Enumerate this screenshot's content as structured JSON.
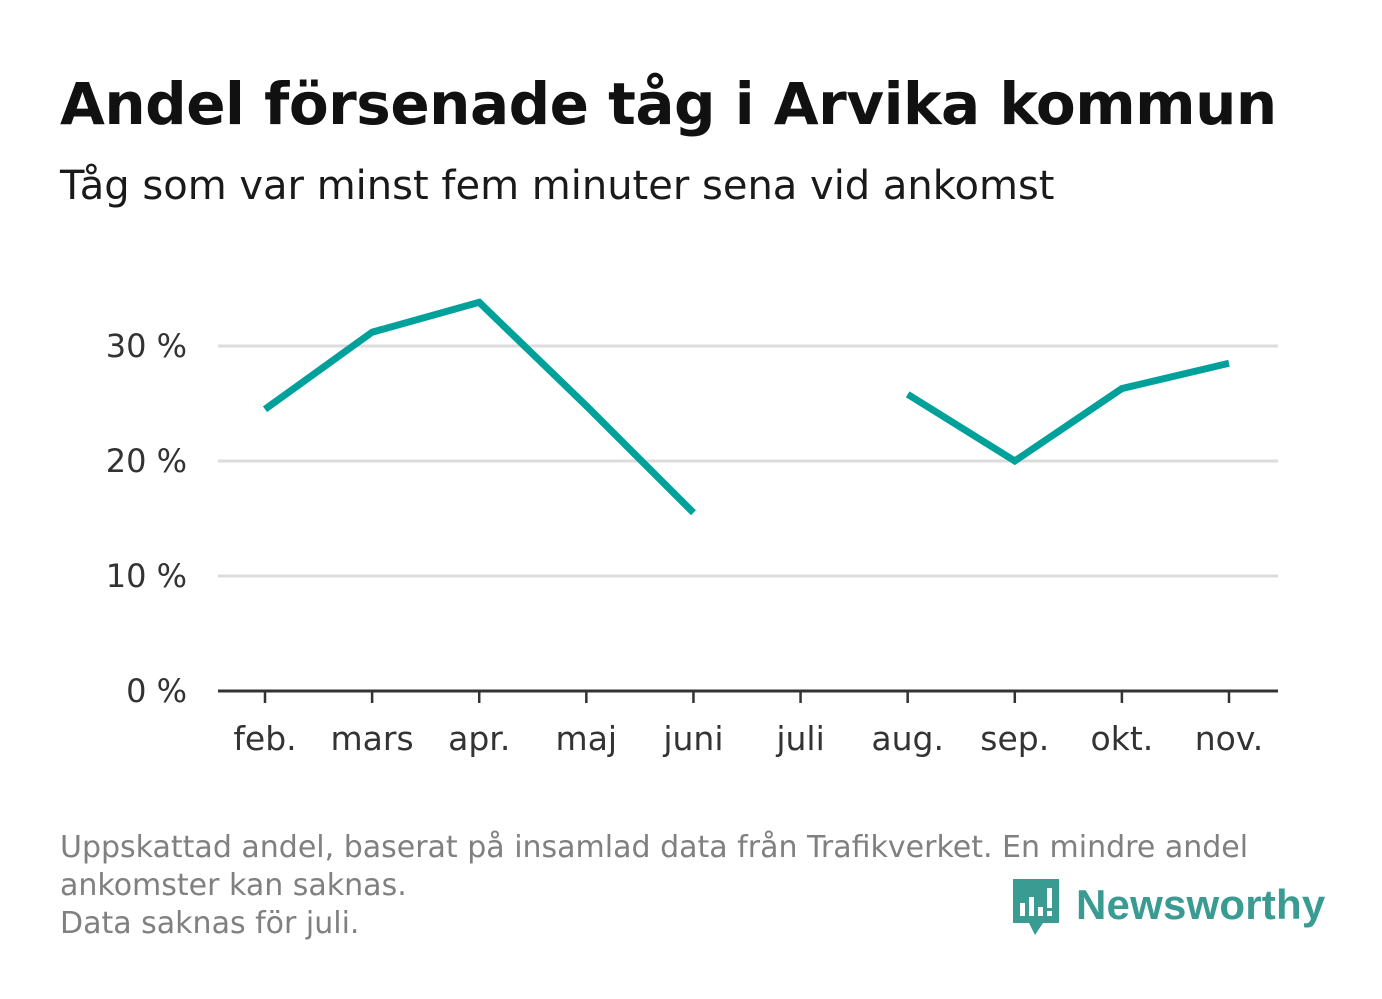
{
  "header": {
    "title": "Andel försenade tåg i Arvika kommun",
    "subtitle": "Tåg som var minst fem minuter sena vid ankomst"
  },
  "footer": {
    "note_line1": "Uppskattad andel, baserat på insamlad data från Trafikverket. En mindre andel",
    "note_line2": "ankomster kan saknas.",
    "note_line3": "Data saknas för juli.",
    "brand": "Newsworthy",
    "brand_icon": "newsworthy-logo-icon"
  },
  "colors": {
    "line": "#00a19a",
    "grid": "#dcdcdc",
    "axis": "#333333",
    "brand": "#3a9b92"
  },
  "chart_data": {
    "type": "line",
    "title": "Andel försenade tåg i Arvika kommun",
    "subtitle": "Tåg som var minst fem minuter sena vid ankomst",
    "xlabel": "",
    "ylabel": "",
    "categories": [
      "feb.",
      "mars",
      "apr.",
      "maj",
      "juni",
      "juli",
      "aug.",
      "sep.",
      "okt.",
      "nov."
    ],
    "series": [
      {
        "values": [
          24.5,
          31.2,
          33.8,
          24.8,
          15.5,
          null,
          25.8,
          20.0,
          26.3,
          28.5
        ]
      }
    ],
    "ylim": [
      0,
      38
    ],
    "yticks": [
      0,
      10,
      20,
      30
    ],
    "ytick_labels": [
      "0 %",
      "10 %",
      "20 %",
      "30 %"
    ],
    "grid": true,
    "legend": "none"
  }
}
